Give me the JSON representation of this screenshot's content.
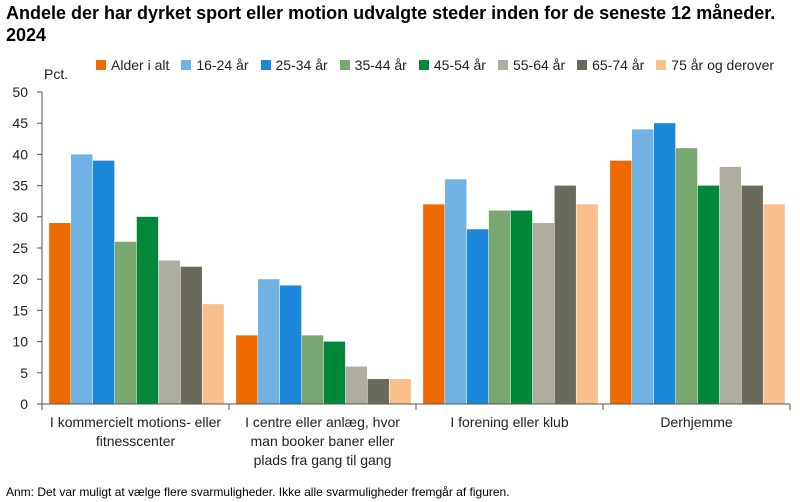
{
  "title": "Andele der har dyrket sport eller motion udvalgte steder inden for de seneste 12 måneder. 2024",
  "footnote": "Anm: Det var muligt at vælge flere svarmuligheder. Ikke alle svarmuligheder fremgår af figuren.",
  "chart_data": {
    "type": "bar",
    "title": "Andele der har dyrket sport eller motion udvalgte steder inden for de seneste 12 måneder. 2024",
    "ylabel": "Pct.",
    "xlabel": "",
    "ylim": [
      0,
      50
    ],
    "yticks": [
      "0",
      "5",
      "10",
      "15",
      "20",
      "25",
      "30",
      "35",
      "40",
      "45",
      "50"
    ],
    "grid": false,
    "legend_position": "top",
    "categories": [
      "I kommercielt motions- eller fitnesscenter",
      "I centre eller anlæg, hvor man booker baner eller plads fra gang til gang",
      "I forening eller klub",
      "Derhjemme"
    ],
    "series": [
      {
        "name": "Alder i alt",
        "color": "#ec6a00",
        "values": [
          29,
          11,
          32,
          39
        ]
      },
      {
        "name": "16-24 år",
        "color": "#6fb2e3",
        "values": [
          40,
          20,
          36,
          44
        ]
      },
      {
        "name": "25-34 år",
        "color": "#1a87d8",
        "values": [
          39,
          19,
          28,
          45
        ]
      },
      {
        "name": "35-44 år",
        "color": "#78a870",
        "values": [
          26,
          11,
          31,
          41
        ]
      },
      {
        "name": "45-54 år",
        "color": "#00883a",
        "values": [
          30,
          10,
          31,
          35
        ]
      },
      {
        "name": "55-64 år",
        "color": "#aeada0",
        "values": [
          23,
          6,
          29,
          38
        ]
      },
      {
        "name": "65-74 år",
        "color": "#6a6a5c",
        "values": [
          22,
          4,
          35,
          35
        ]
      },
      {
        "name": "75 år og derover",
        "color": "#f9c08c",
        "values": [
          16,
          4,
          32,
          32
        ]
      }
    ]
  }
}
